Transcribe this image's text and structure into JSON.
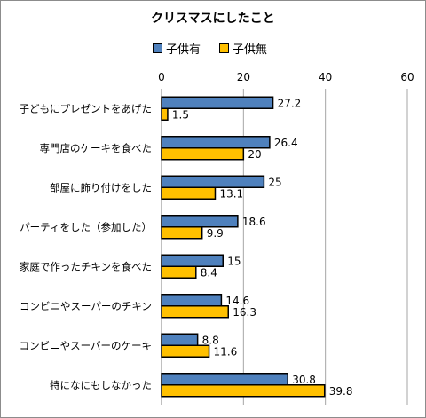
{
  "chart_data": {
    "type": "bar",
    "orientation": "horizontal",
    "title": "クリスマスにしたこと",
    "categories": [
      "子どもにプレゼントをあげた",
      "専門店のケーキを食べた",
      "部屋に飾り付けをした",
      "パーティをした（参加した）",
      "家庭で作ったチキンを食べた",
      "コンビニやスーパーのチキン",
      "コンビニやスーパーのケーキ",
      "特になにもしなかった"
    ],
    "series": [
      {
        "name": "子供有",
        "color": "#4f81bd",
        "values": [
          27.2,
          26.4,
          25,
          18.6,
          15,
          14.6,
          8.8,
          30.8
        ]
      },
      {
        "name": "子供無",
        "color": "#ffc000",
        "values": [
          1.5,
          20,
          13.1,
          9.9,
          8.4,
          16.3,
          11.6,
          39.8
        ]
      }
    ],
    "xlim": [
      0,
      60
    ],
    "xticks": [
      "0",
      "20",
      "40",
      "60"
    ],
    "xticks_position": "top",
    "grid": true,
    "legend": "top",
    "data_labels": true
  }
}
